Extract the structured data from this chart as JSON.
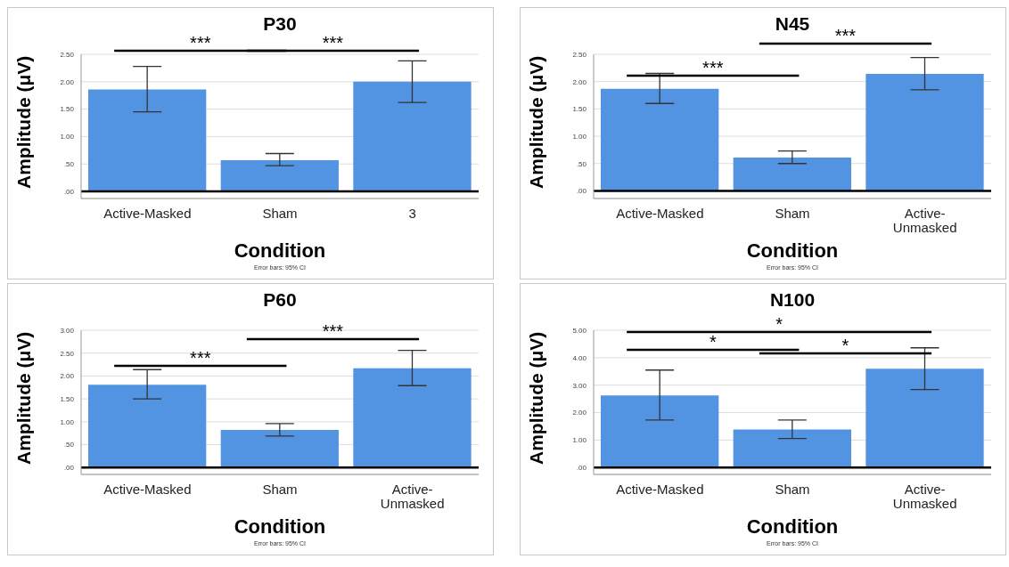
{
  "chart_data": [
    {
      "type": "bar",
      "title": "P30",
      "xlabel": "Condition",
      "ylabel": "Amplitude (μV)",
      "categories": [
        "Active-Masked",
        "Sham",
        "3"
      ],
      "values": [
        1.86,
        0.57,
        2.0
      ],
      "errors": [
        [
          1.45,
          2.28
        ],
        [
          0.47,
          0.69
        ],
        [
          1.62,
          2.38
        ]
      ],
      "color": "#5294e2",
      "ylim": [
        -0.13,
        2.5
      ],
      "yticks": [
        {
          "value": 0,
          "label": ".00"
        },
        {
          "value": 0.5,
          "label": ".50"
        },
        {
          "value": 1,
          "label": "1.00"
        },
        {
          "value": 1.5,
          "label": "1.50"
        },
        {
          "value": 2,
          "label": "2.00"
        },
        {
          "value": 2.5,
          "label": "2.50"
        }
      ],
      "grid": "y",
      "legend": false,
      "ref_lines": [
        {
          "axis": "y",
          "value": 0,
          "color": "#000000"
        }
      ],
      "annotations": [
        "***",
        "***",
        "Error bars: 95% CI"
      ]
    },
    {
      "type": "bar",
      "title": "N45",
      "xlabel": "Condition",
      "ylabel": "Amplitude (μV)",
      "categories": [
        "Active-Masked",
        "Sham",
        "Active-Unmasked"
      ],
      "values": [
        1.87,
        0.61,
        2.14
      ],
      "errors": [
        [
          1.6,
          2.15
        ],
        [
          0.5,
          0.73
        ],
        [
          1.85,
          2.44
        ]
      ],
      "color": "#5294e2",
      "ylim": [
        -0.14,
        2.5
      ],
      "yticks": [
        {
          "value": 0,
          "label": ".00"
        },
        {
          "value": 0.5,
          "label": ".50"
        },
        {
          "value": 1,
          "label": "1.00"
        },
        {
          "value": 1.5,
          "label": "1.50"
        },
        {
          "value": 2,
          "label": "2.00"
        },
        {
          "value": 2.5,
          "label": "2.50"
        }
      ],
      "grid": "y",
      "legend": false,
      "ref_lines": [
        {
          "axis": "y",
          "value": 0,
          "color": "#000000"
        }
      ],
      "annotations": [
        "***",
        "***",
        "Error bars: 95% CI"
      ]
    },
    {
      "type": "bar",
      "title": "P60",
      "xlabel": "Condition",
      "ylabel": "Amplitude (μV)",
      "categories": [
        "Active-Masked",
        "Sham",
        "Active-Unmasked"
      ],
      "values": [
        1.81,
        0.82,
        2.17
      ],
      "errors": [
        [
          1.5,
          2.14
        ],
        [
          0.69,
          0.96
        ],
        [
          1.79,
          2.56
        ]
      ],
      "color": "#5294e2",
      "ylim": [
        -0.15,
        3
      ],
      "yticks": [
        {
          "value": 0,
          "label": ".00"
        },
        {
          "value": 0.5,
          "label": ".50"
        },
        {
          "value": 1,
          "label": "1.00"
        },
        {
          "value": 1.5,
          "label": "1.50"
        },
        {
          "value": 2,
          "label": "2.00"
        },
        {
          "value": 2.5,
          "label": "2.50"
        },
        {
          "value": 3,
          "label": "3.00"
        }
      ],
      "grid": "y",
      "legend": false,
      "ref_lines": [
        {
          "axis": "y",
          "value": 0,
          "color": "#000000"
        }
      ],
      "annotations": [
        "***",
        "***",
        "Error bars: 95% CI"
      ]
    },
    {
      "type": "bar",
      "title": "N100",
      "xlabel": "Condition",
      "ylabel": "Amplitude (μV)",
      "categories": [
        "Active-Masked",
        "Sham",
        "Active-Unmasked"
      ],
      "values": [
        2.63,
        1.39,
        3.6
      ],
      "errors": [
        [
          1.73,
          3.55
        ],
        [
          1.06,
          1.73
        ],
        [
          2.84,
          4.36
        ]
      ],
      "color": "#5294e2",
      "ylim": [
        -0.25,
        5
      ],
      "yticks": [
        {
          "value": 0,
          "label": ".00"
        },
        {
          "value": 1,
          "label": "1.00"
        },
        {
          "value": 2,
          "label": "2.00"
        },
        {
          "value": 3,
          "label": "3.00"
        },
        {
          "value": 4,
          "label": "4.00"
        },
        {
          "value": 5,
          "label": "5.00"
        }
      ],
      "grid": "y",
      "legend": false,
      "ref_lines": [
        {
          "axis": "y",
          "value": 0,
          "color": "#000000"
        }
      ],
      "annotations": [
        "*",
        "*",
        "*",
        "Error bars: 95% CI"
      ]
    }
  ]
}
